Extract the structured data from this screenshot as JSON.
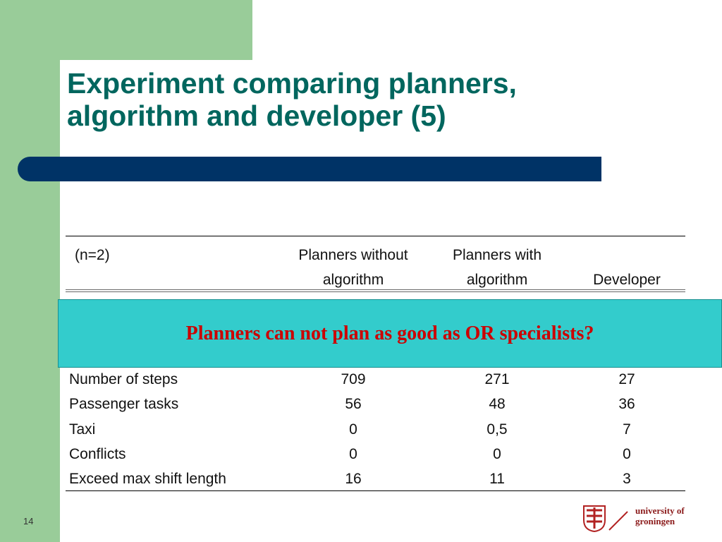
{
  "title": [
    "Experiment comparing planners,",
    "algorithm and developer (5)"
  ],
  "table": {
    "header": [
      [
        "(n=2)"
      ],
      [
        "Planners without",
        "algorithm"
      ],
      [
        "Planners with",
        "algorithm"
      ],
      [
        "Developer"
      ]
    ],
    "rows": [
      [
        "Number of steps",
        "709",
        "271",
        "27"
      ],
      [
        "Passenger tasks",
        "56",
        "48",
        "36"
      ],
      [
        "Taxi",
        "0",
        "0,5",
        "7"
      ],
      [
        "Conflicts",
        "0",
        "0",
        "0"
      ],
      [
        "Exceed max shift length",
        "16",
        "11",
        "3"
      ]
    ]
  },
  "callout": "Planners can not plan as good as OR specialists?",
  "page_number": "14",
  "logo": [
    "university of",
    "groningen"
  ]
}
